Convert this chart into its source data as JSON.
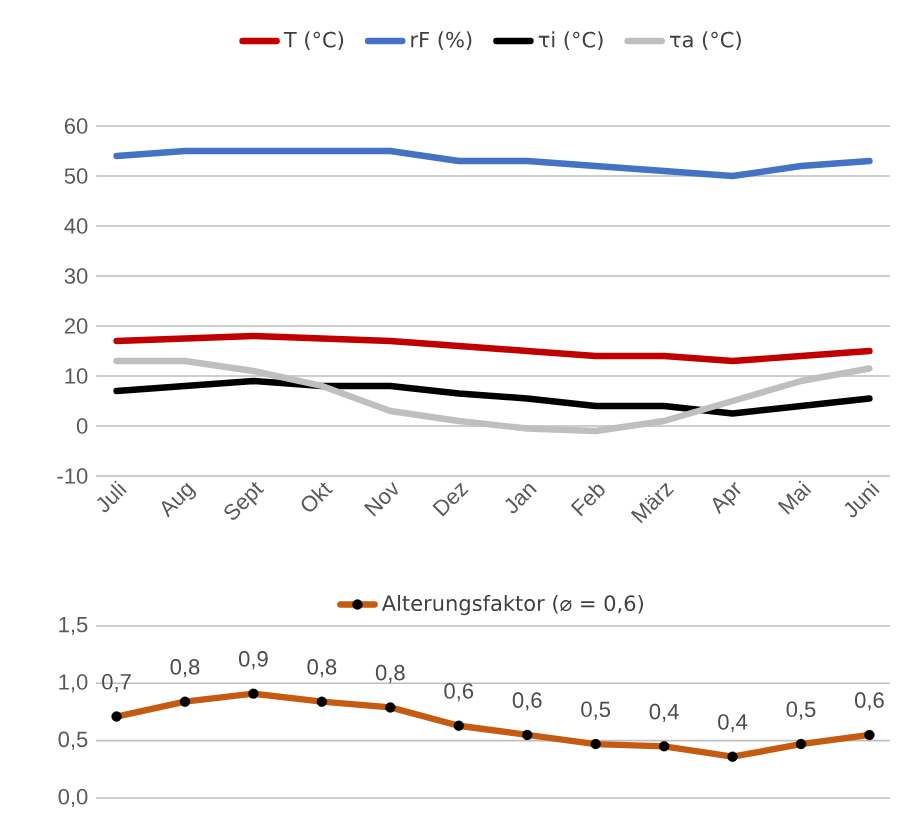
{
  "chart_data": [
    {
      "type": "line",
      "categories": [
        "Juli",
        "Aug",
        "Sept",
        "Okt",
        "Nov",
        "Dez",
        "Jan",
        "Feb",
        "März",
        "Apr",
        "Mai",
        "Juni"
      ],
      "series": [
        {
          "name": "T (°C)",
          "color": "#c00000",
          "values": [
            17,
            17.5,
            18,
            17.5,
            17,
            16,
            15,
            14,
            14,
            13,
            14,
            15
          ]
        },
        {
          "name": "rF (%)",
          "color": "#4472c4",
          "values": [
            54,
            55,
            55,
            55,
            55,
            53,
            53,
            52,
            51,
            50,
            52,
            53
          ]
        },
        {
          "name": "τi (°C)",
          "color": "#000000",
          "values": [
            7,
            8,
            9,
            8,
            8,
            6.5,
            5.5,
            4,
            4,
            2.5,
            4,
            5.5
          ]
        },
        {
          "name": "τa (°C)",
          "color": "#bfbfbf",
          "values": [
            13,
            13,
            11,
            8,
            3,
            1,
            -0.5,
            -1,
            1,
            5,
            9,
            11.5
          ]
        }
      ],
      "ylim": [
        -10,
        60
      ],
      "yticks": [
        -10,
        0,
        10,
        20,
        30,
        40,
        50,
        60
      ],
      "grid": "y",
      "legend": "top",
      "marker": "none"
    },
    {
      "type": "line",
      "categories": [
        null,
        null,
        null,
        null,
        null,
        null,
        null,
        null,
        null,
        null,
        null,
        null
      ],
      "series": [
        {
          "name": "Alterungsfaktor (⌀ = 0,6)",
          "color": "#c55a11",
          "values": [
            0.71,
            0.84,
            0.91,
            0.84,
            0.79,
            0.63,
            0.55,
            0.47,
            0.45,
            0.36,
            0.47,
            0.55
          ],
          "value_labels": [
            "0,7",
            "0,8",
            "0,9",
            "0,8",
            "0,8",
            "0,6",
            "0,6",
            "0,5",
            "0,4",
            "0,4",
            "0,5",
            "0,6"
          ]
        }
      ],
      "ylim": [
        0,
        1.5
      ],
      "yticks": [
        {
          "value": 0,
          "label": "0,0"
        },
        {
          "value": 0.5,
          "label": "0,5"
        },
        {
          "value": 1,
          "label": "1,0"
        },
        {
          "value": 1.5,
          "label": "1,5"
        }
      ],
      "grid": "y",
      "legend": "top",
      "marker": "circle"
    }
  ]
}
